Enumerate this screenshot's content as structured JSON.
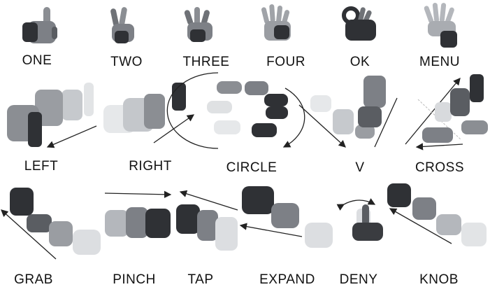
{
  "gestures": [
    {
      "label": "ONE",
      "icon": "hand-one-finger-icon"
    },
    {
      "label": "TWO",
      "icon": "hand-two-fingers-icon"
    },
    {
      "label": "THREE",
      "icon": "hand-three-fingers-icon"
    },
    {
      "label": "FOUR",
      "icon": "hand-four-fingers-icon"
    },
    {
      "label": "OK",
      "icon": "hand-ok-sign-icon"
    },
    {
      "label": "MENU",
      "icon": "hand-open-palm-icon"
    },
    {
      "label": "LEFT",
      "icon": "hand-swipe-left-icon"
    },
    {
      "label": "RIGHT",
      "icon": "hand-swipe-right-icon"
    },
    {
      "label": "CIRCLE",
      "icon": "hand-circle-motion-icon"
    },
    {
      "label": "V",
      "icon": "hand-v-motion-icon"
    },
    {
      "label": "CROSS",
      "icon": "hand-cross-motion-icon"
    },
    {
      "label": "GRAB",
      "icon": "hand-grab-icon"
    },
    {
      "label": "PINCH",
      "icon": "hand-pinch-icon"
    },
    {
      "label": "TAP",
      "icon": "hand-tap-icon"
    },
    {
      "label": "EXPAND",
      "icon": "hand-expand-icon"
    },
    {
      "label": "DENY",
      "icon": "hand-deny-wag-icon"
    },
    {
      "label": "KNOB",
      "icon": "hand-knob-turn-icon"
    }
  ],
  "colors": {
    "text": "#111111",
    "hand_dark": "#2f3135",
    "hand_mid": "#7d8086",
    "hand_light": "#b9bcc1",
    "hand_faint": "#e1e3e5",
    "arrow": "#222222"
  }
}
